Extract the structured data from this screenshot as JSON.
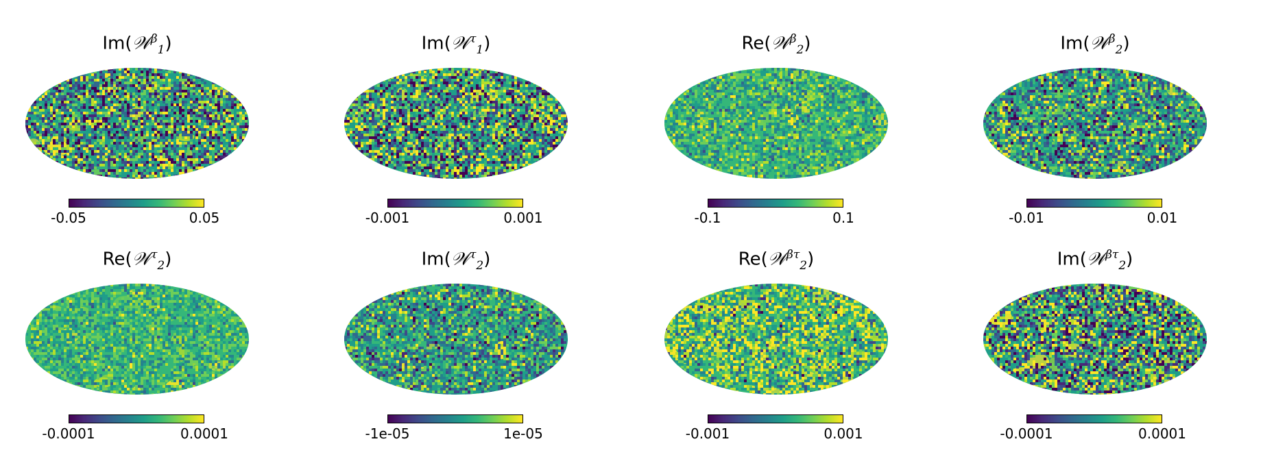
{
  "colormap": [
    "#440154",
    "#482878",
    "#3e4a89",
    "#31688e",
    "#26828e",
    "#1f9e89",
    "#35b779",
    "#6ece58",
    "#b5de2b",
    "#fde725"
  ],
  "chart_data": [
    {
      "type": "heatmap",
      "projection": "mollweide",
      "function": "Im",
      "symbol": "𝒲",
      "subscript": "1",
      "superscript": "β",
      "title": "Im(𝒲₁^β)",
      "colorbar": {
        "min": -0.05,
        "max": 0.05,
        "min_label": "-0.05",
        "max_label": "0.05"
      },
      "texture": {
        "mean": 0.5,
        "std": 0.3,
        "blobs": 8,
        "seed": 11
      }
    },
    {
      "type": "heatmap",
      "projection": "mollweide",
      "function": "Im",
      "symbol": "𝒲",
      "subscript": "1",
      "superscript": "τ",
      "title": "Im(𝒲₁^τ)",
      "colorbar": {
        "min": -0.001,
        "max": 0.001,
        "min_label": "-0.001",
        "max_label": "0.001"
      },
      "texture": {
        "mean": 0.5,
        "std": 0.32,
        "blobs": 8,
        "seed": 23
      }
    },
    {
      "type": "heatmap",
      "projection": "mollweide",
      "function": "Re",
      "symbol": "𝒲",
      "subscript": "2",
      "superscript": "β",
      "title": "Re(𝒲₂^β)",
      "colorbar": {
        "min": -0.1,
        "max": 0.1,
        "min_label": "-0.1",
        "max_label": "0.1"
      },
      "texture": {
        "mean": 0.62,
        "std": 0.14,
        "blobs": 14,
        "seed": 37
      }
    },
    {
      "type": "heatmap",
      "projection": "mollweide",
      "function": "Im",
      "symbol": "𝒲",
      "subscript": "2",
      "superscript": "β",
      "title": "Im(𝒲₂^β)",
      "colorbar": {
        "min": -0.01,
        "max": 0.01,
        "min_label": "-0.01",
        "max_label": "0.01"
      },
      "texture": {
        "mean": 0.52,
        "std": 0.24,
        "blobs": 8,
        "seed": 41
      }
    },
    {
      "type": "heatmap",
      "projection": "mollweide",
      "function": "Re",
      "symbol": "𝒲",
      "subscript": "2",
      "superscript": "τ",
      "title": "Re(𝒲₂^τ)",
      "colorbar": {
        "min": -0.0001,
        "max": 0.0001,
        "min_label": "-0.0001",
        "max_label": "0.0001"
      },
      "texture": {
        "mean": 0.63,
        "std": 0.12,
        "blobs": 14,
        "seed": 53
      }
    },
    {
      "type": "heatmap",
      "projection": "mollweide",
      "function": "Im",
      "symbol": "𝒲",
      "subscript": "2",
      "superscript": "τ",
      "title": "Im(𝒲₂^τ)",
      "colorbar": {
        "min": -1e-05,
        "max": 1e-05,
        "min_label": "-1e-05",
        "max_label": "1e-05"
      },
      "texture": {
        "mean": 0.53,
        "std": 0.2,
        "blobs": 8,
        "seed": 67
      }
    },
    {
      "type": "heatmap",
      "projection": "mollweide",
      "function": "Re",
      "symbol": "𝒲",
      "subscript": "2",
      "superscript": "βτ",
      "title": "Re(𝒲₂^βτ)",
      "colorbar": {
        "min": -0.001,
        "max": 0.001,
        "min_label": "-0.001",
        "max_label": "0.001"
      },
      "texture": {
        "mean": 0.68,
        "std": 0.22,
        "blobs": 16,
        "seed": 71
      }
    },
    {
      "type": "heatmap",
      "projection": "mollweide",
      "function": "Im",
      "symbol": "𝒲",
      "subscript": "2",
      "superscript": "βτ",
      "title": "Im(𝒲₂^βτ)",
      "colorbar": {
        "min": -0.0001,
        "max": 0.0001,
        "min_label": "-0.0001",
        "max_label": "0.0001"
      },
      "texture": {
        "mean": 0.5,
        "std": 0.33,
        "blobs": 8,
        "seed": 89
      }
    }
  ]
}
